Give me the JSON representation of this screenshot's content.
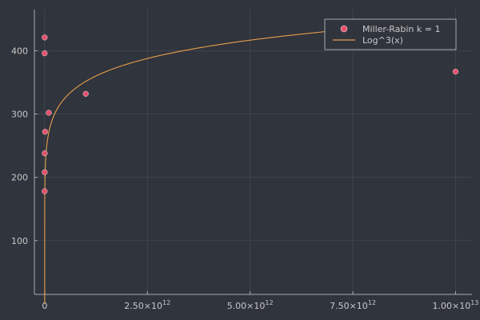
{
  "chart_data": {
    "type": "scatter",
    "title": "",
    "xlabel": "",
    "ylabel": "",
    "xlim": [
      -250000000000,
      10400000000000
    ],
    "ylim": [
      15,
      465
    ],
    "grid": true,
    "legend_position": "top-right",
    "x_ticks": [
      {
        "value": 0,
        "label": "0"
      },
      {
        "value": 2500000000000,
        "base": "2.50×10",
        "exp": "12"
      },
      {
        "value": 5000000000000,
        "base": "5.00×10",
        "exp": "12"
      },
      {
        "value": 7500000000000,
        "base": "7.50×10",
        "exp": "12"
      },
      {
        "value": 10000000000000,
        "base": "1.00×10",
        "exp": "13"
      }
    ],
    "y_ticks": [
      {
        "value": 100,
        "label": "100"
      },
      {
        "value": 200,
        "label": "200"
      },
      {
        "value": 300,
        "label": "300"
      },
      {
        "value": 400,
        "label": "400"
      }
    ],
    "series": [
      {
        "name": "Miller-Rabin k = 1",
        "kind": "scatter",
        "color": "#e2526e",
        "x": [
          10000000,
          100000000,
          1000000000,
          10000000000,
          100000000000,
          1000000000000,
          10000000000000,
          10000000,
          100000000
        ],
        "y": [
          178,
          208,
          238,
          272,
          302,
          332,
          367,
          396,
          421
        ]
      },
      {
        "name": "Log^3(x)",
        "kind": "line",
        "color": "#e69f4b",
        "function": "log^3",
        "x_range": [
          10,
          10000000000000
        ]
      }
    ]
  }
}
